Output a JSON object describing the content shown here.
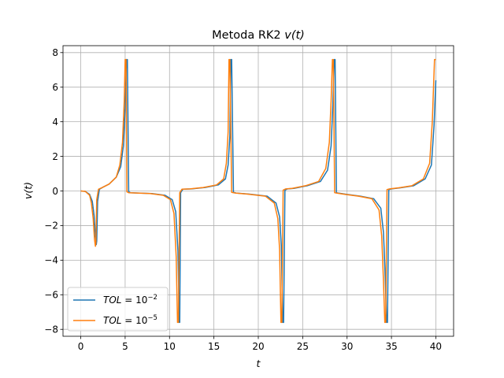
{
  "chart_data": {
    "type": "line",
    "title": "Metoda RK2",
    "title_math": "v(t)",
    "xlabel": "t",
    "ylabel": "v(t)",
    "xlim": [
      -2,
      42
    ],
    "ylim": [
      -8.4,
      8.4
    ],
    "xticks": [
      0,
      5,
      10,
      15,
      20,
      25,
      30,
      35,
      40
    ],
    "xtick_labels": [
      "0",
      "5",
      "10",
      "15",
      "20",
      "25",
      "30",
      "35",
      "40"
    ],
    "yticks": [
      -8,
      -6,
      -4,
      -2,
      0,
      2,
      4,
      6,
      8
    ],
    "ytick_labels": [
      "−8",
      "−6",
      "−4",
      "−2",
      "0",
      "2",
      "4",
      "6",
      "8"
    ],
    "grid": true,
    "legend_position": "lower-left",
    "series": [
      {
        "name": "TOL = 10^-2",
        "legend_base": "TOL",
        "legend_exp": "−2",
        "color": "#1f77b4",
        "x": [
          0,
          0.5,
          1.0,
          1.3,
          1.5,
          1.65,
          1.75,
          1.8,
          1.9,
          2.1,
          2.5,
          3.2,
          4.0,
          4.5,
          4.8,
          5.0,
          5.15,
          5.25,
          5.4,
          5.6,
          6.5,
          8.0,
          9.5,
          10.3,
          10.7,
          10.95,
          11.1,
          11.15,
          11.25,
          11.5,
          12.5,
          14.0,
          15.5,
          16.3,
          16.6,
          16.8,
          16.9,
          17.0,
          17.2,
          17.5,
          19.0,
          21.0,
          22.0,
          22.4,
          22.6,
          22.75,
          22.85,
          23.0,
          23.3,
          24.0,
          25.5,
          27.0,
          27.8,
          28.2,
          28.4,
          28.55,
          28.65,
          28.8,
          29.0,
          30.0,
          31.5,
          33.0,
          33.8,
          34.1,
          34.3,
          34.45,
          34.55,
          34.7,
          35.0,
          36.0,
          37.5,
          38.8,
          39.5,
          39.8,
          40.0
        ],
        "y": [
          0,
          -0.02,
          -0.2,
          -0.6,
          -1.4,
          -2.6,
          -3.1,
          -2.9,
          -0.6,
          0.1,
          0.22,
          0.4,
          0.8,
          1.4,
          2.6,
          4.8,
          7.6,
          7.6,
          -0.05,
          -0.1,
          -0.12,
          -0.15,
          -0.25,
          -0.5,
          -1.2,
          -3.5,
          -7.6,
          -7.6,
          -0.1,
          0.1,
          0.12,
          0.2,
          0.35,
          0.7,
          1.5,
          3.2,
          7.6,
          7.6,
          -0.08,
          -0.12,
          -0.18,
          -0.3,
          -0.7,
          -1.5,
          -3.2,
          -7.6,
          -7.6,
          0.05,
          0.12,
          0.15,
          0.3,
          0.55,
          1.2,
          2.6,
          5.0,
          7.6,
          7.6,
          -0.1,
          -0.12,
          -0.2,
          -0.3,
          -0.45,
          -1.0,
          -2.4,
          -5.0,
          -7.6,
          -7.6,
          0.08,
          0.12,
          0.18,
          0.3,
          0.7,
          1.5,
          3.8,
          6.4
        ]
      },
      {
        "name": "TOL = 10^-5",
        "legend_base": "TOL",
        "legend_exp": "−5",
        "color": "#ff7f0e",
        "x": [
          0,
          0.5,
          1.0,
          1.2,
          1.4,
          1.55,
          1.65,
          1.7,
          1.8,
          2.0,
          2.5,
          3.2,
          4.0,
          4.4,
          4.7,
          4.9,
          5.0,
          5.1,
          5.2,
          5.4,
          6.3,
          7.8,
          9.3,
          10.1,
          10.5,
          10.75,
          10.9,
          11.0,
          11.15,
          11.4,
          12.3,
          13.8,
          15.3,
          16.1,
          16.4,
          16.6,
          16.7,
          16.8,
          17.0,
          17.4,
          18.8,
          20.8,
          21.8,
          22.2,
          22.4,
          22.55,
          22.65,
          22.8,
          23.1,
          23.8,
          25.3,
          26.8,
          27.6,
          28.0,
          28.2,
          28.35,
          28.45,
          28.6,
          28.8,
          29.8,
          31.3,
          32.8,
          33.6,
          33.9,
          34.1,
          34.25,
          34.35,
          34.5,
          34.8,
          35.8,
          37.3,
          38.6,
          39.3,
          39.6,
          39.85,
          40.0
        ],
        "y": [
          0,
          -0.02,
          -0.25,
          -0.7,
          -1.6,
          -2.8,
          -3.2,
          -3.0,
          -0.5,
          0.1,
          0.22,
          0.4,
          0.8,
          1.5,
          2.8,
          5.2,
          7.6,
          7.6,
          -0.05,
          -0.1,
          -0.12,
          -0.15,
          -0.25,
          -0.5,
          -1.3,
          -3.8,
          -7.6,
          -7.6,
          -0.1,
          0.1,
          0.12,
          0.2,
          0.35,
          0.7,
          1.6,
          3.4,
          7.6,
          7.6,
          -0.08,
          -0.12,
          -0.18,
          -0.3,
          -0.7,
          -1.6,
          -3.4,
          -7.6,
          -7.6,
          0.05,
          0.12,
          0.15,
          0.3,
          0.55,
          1.3,
          2.8,
          5.2,
          7.6,
          7.6,
          -0.1,
          -0.12,
          -0.2,
          -0.3,
          -0.45,
          -1.1,
          -2.6,
          -5.2,
          -7.6,
          -7.6,
          0.08,
          0.12,
          0.18,
          0.3,
          0.7,
          1.6,
          4.0,
          7.6,
          7.6
        ]
      }
    ]
  }
}
